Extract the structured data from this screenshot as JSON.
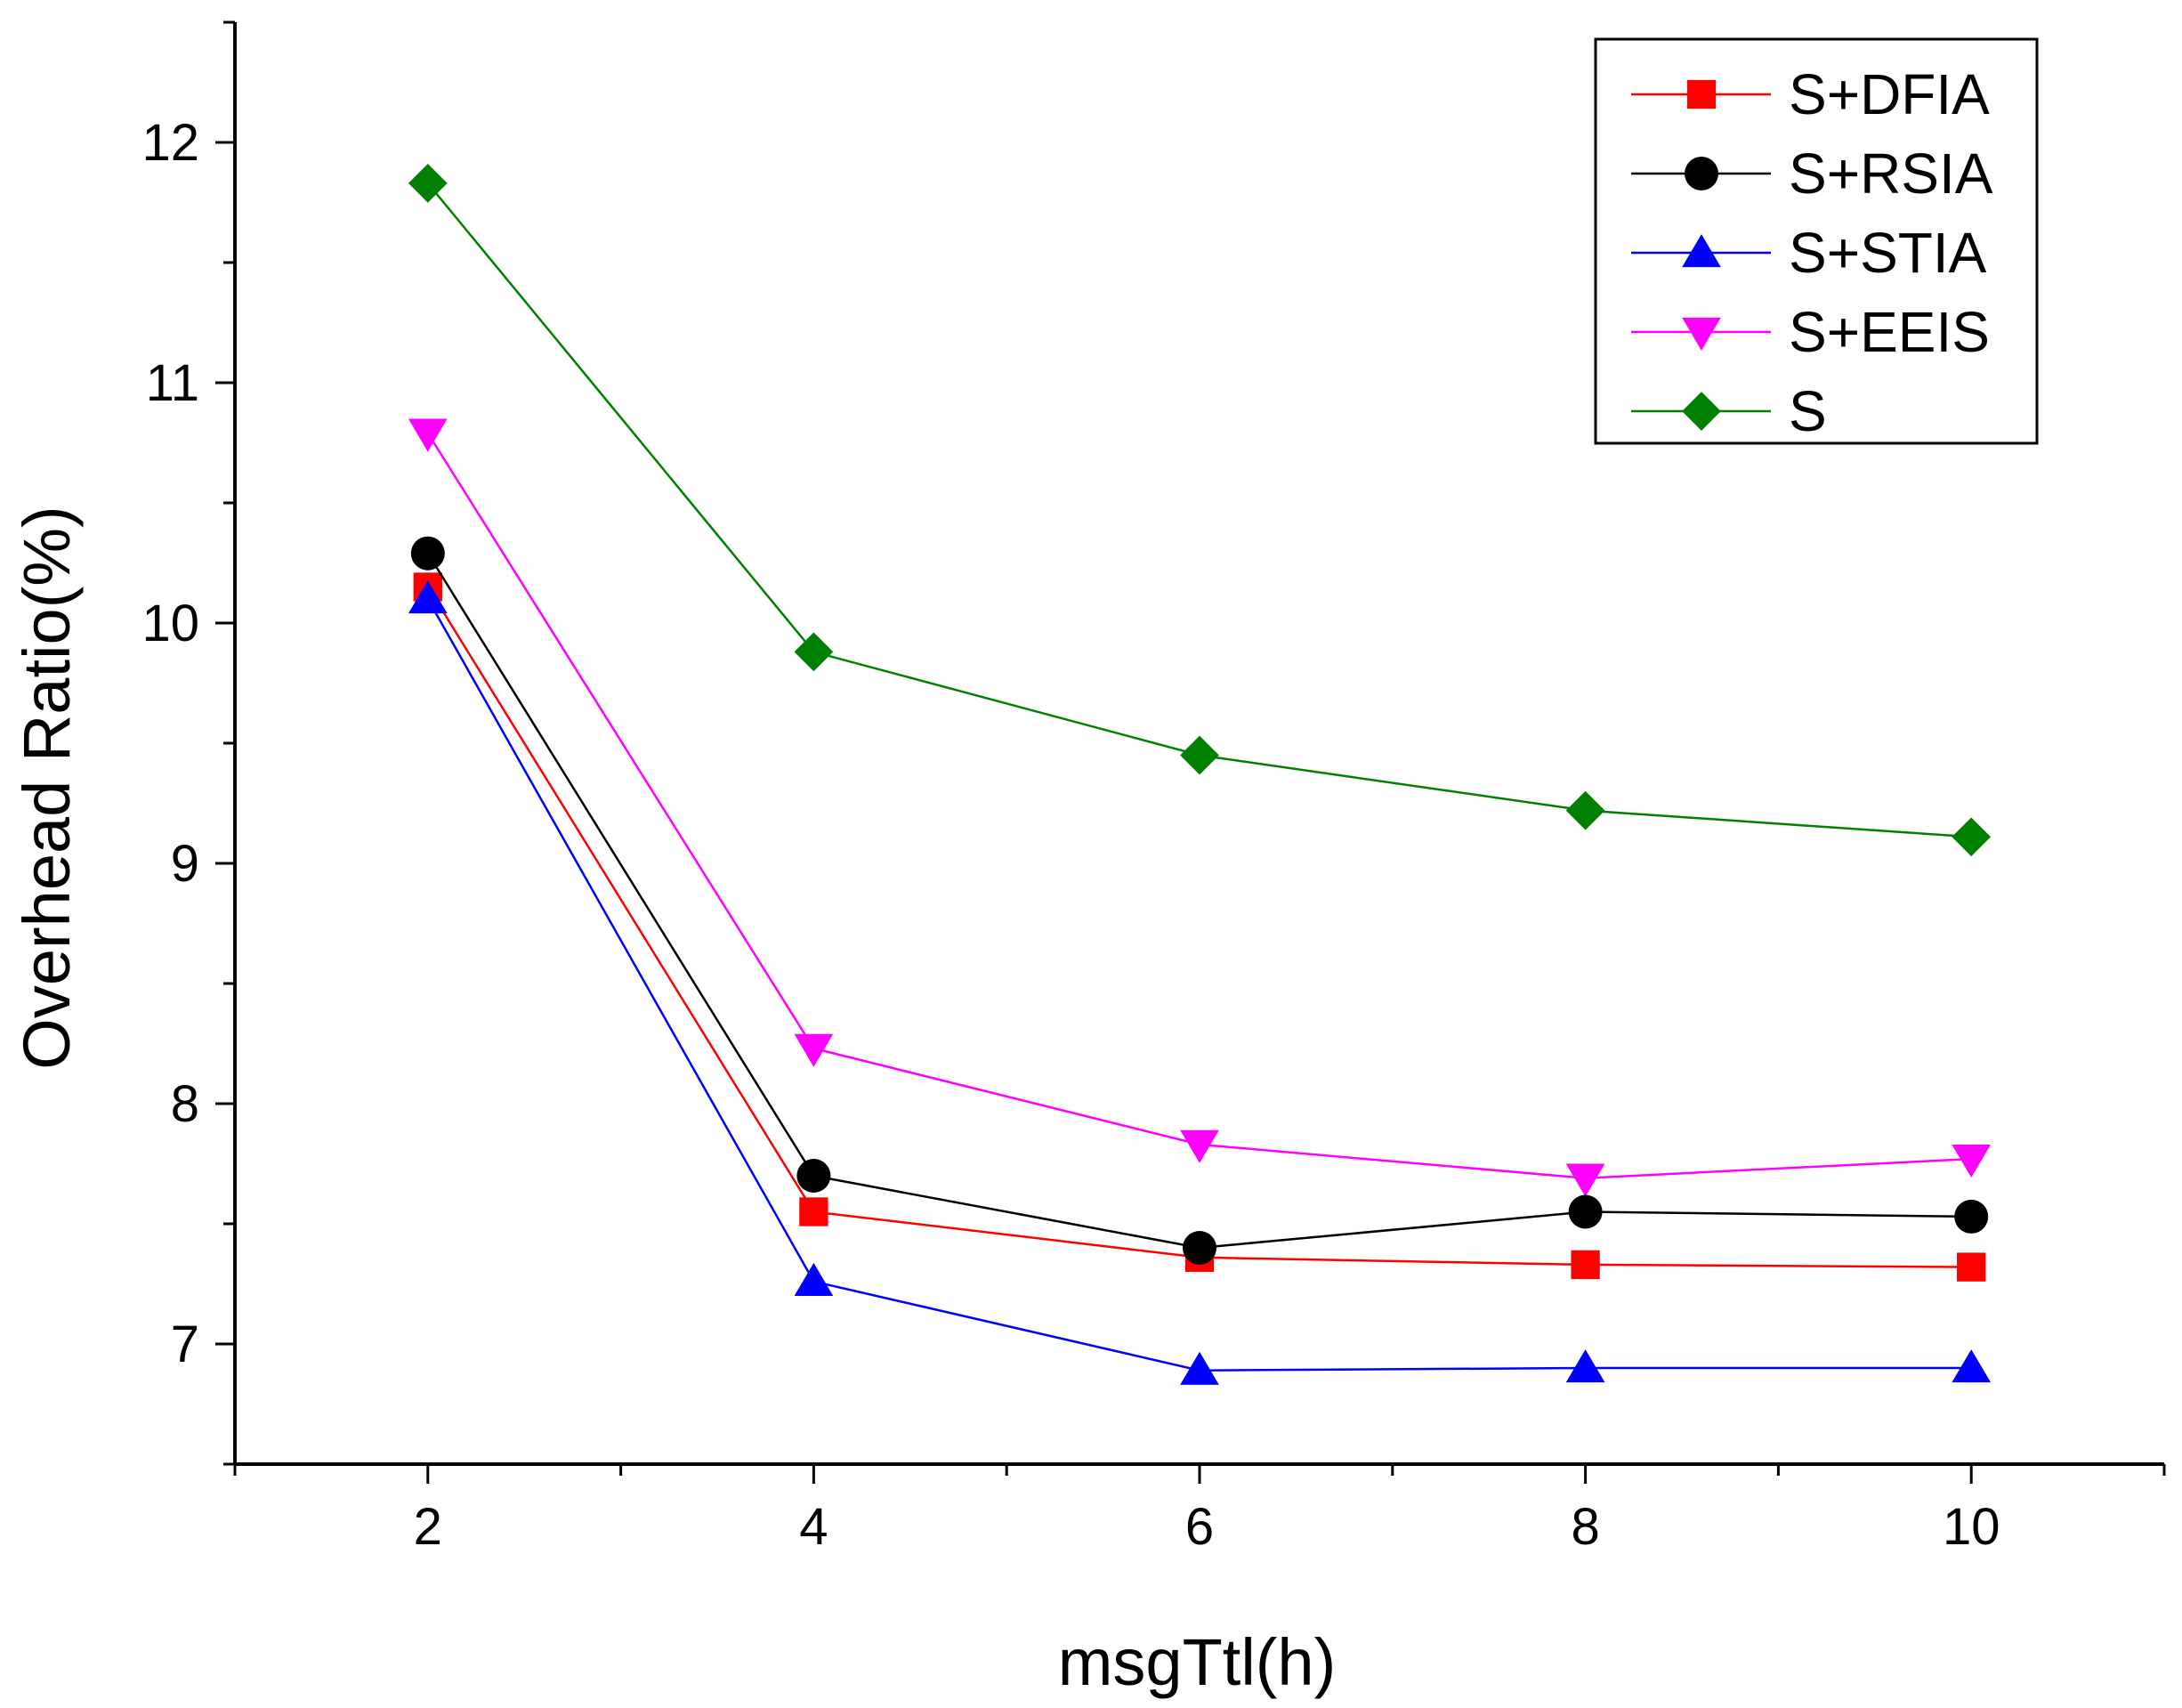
{
  "chart_data": {
    "type": "line",
    "title": "",
    "xlabel": "msgTtl(h)",
    "ylabel": "Overhead Ratio(%)",
    "xlim": [
      1,
      11
    ],
    "ylim": [
      6.5,
      12.5
    ],
    "x": [
      2,
      4,
      6,
      8,
      10
    ],
    "x_tick_labels": [
      "2",
      "4",
      "6",
      "8",
      "10"
    ],
    "y_tick_labels": [
      "7",
      "8",
      "9",
      "10",
      "11",
      "12"
    ],
    "legend_position": "top-right",
    "grid": false,
    "series": [
      {
        "name": "S+DFIA",
        "marker": "square",
        "color": "#ff0000",
        "values": [
          10.15,
          7.55,
          7.36,
          7.33,
          7.32
        ]
      },
      {
        "name": "S+RSIA",
        "marker": "circle",
        "color": "#000000",
        "values": [
          10.29,
          7.7,
          7.4,
          7.55,
          7.53
        ]
      },
      {
        "name": "S+STIA",
        "marker": "triangle-up",
        "color": "#0000ff",
        "values": [
          10.1,
          7.26,
          6.89,
          6.9,
          6.9
        ]
      },
      {
        "name": "S+EEIS",
        "marker": "triangle-down",
        "color": "#ff00ff",
        "values": [
          10.79,
          8.23,
          7.83,
          7.69,
          7.77
        ]
      },
      {
        "name": "S",
        "marker": "diamond",
        "color": "#008000",
        "values": [
          11.83,
          9.88,
          9.45,
          9.22,
          9.11
        ]
      }
    ]
  }
}
